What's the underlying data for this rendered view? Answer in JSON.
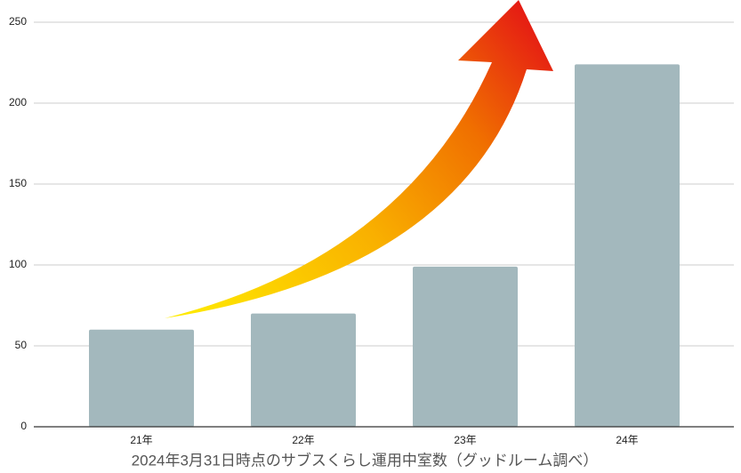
{
  "chart_data": {
    "type": "bar",
    "caption": "2024年3月31日時点のサブスくらし運用中室数（グッドルーム調べ）",
    "categories": [
      "21年",
      "22年",
      "23年",
      "24年"
    ],
    "values": [
      60,
      70,
      99,
      224
    ],
    "color": "#a3b8bd",
    "ylim": [
      0,
      250
    ],
    "yticks": [
      0,
      50,
      100,
      150,
      200,
      250
    ],
    "grid": true
  }
}
